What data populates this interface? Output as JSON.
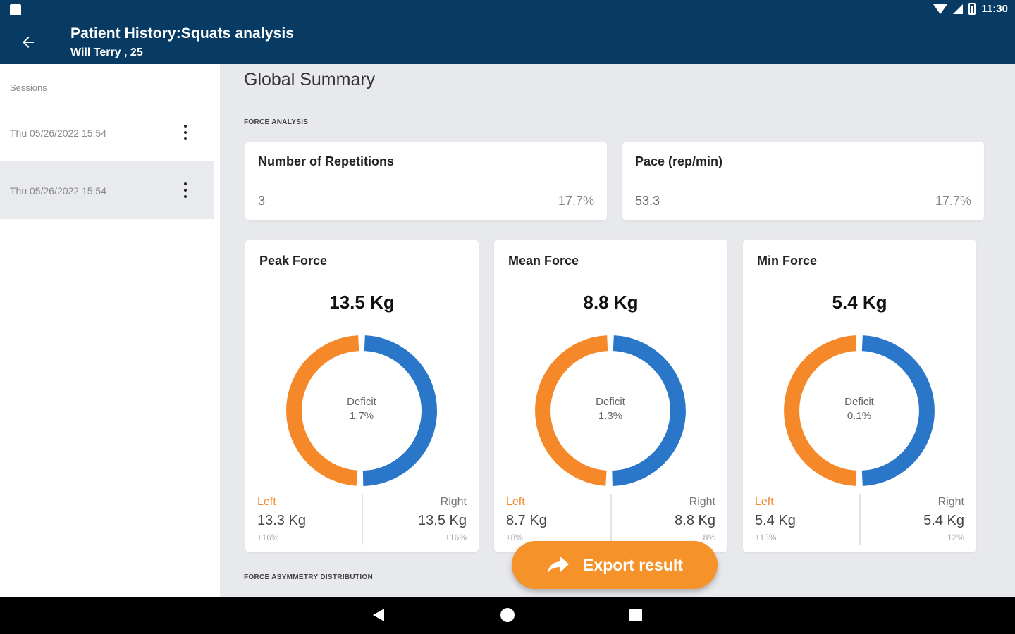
{
  "status_bar": {
    "time": "11:30",
    "icons": [
      "wifi-icon",
      "signal-icon",
      "battery-icon"
    ]
  },
  "app_bar": {
    "title": "Patient History:Squats analysis",
    "subtitle": "Will Terry , 25",
    "back_icon": "arrow-left-icon"
  },
  "sidebar": {
    "label": "Sessions",
    "sessions": [
      {
        "date": "Thu 05/26/2022 15:54",
        "selected": false
      },
      {
        "date": "Thu 05/26/2022 15:54",
        "selected": true
      }
    ]
  },
  "main": {
    "title": "Global Summary",
    "section_force": "FORCE ANALYSIS",
    "section_asymmetry": "FORCE ASYMMETRY DISTRIBUTION",
    "stats": [
      {
        "title": "Number of Repetitions",
        "value": "3",
        "pct": "17.7%"
      },
      {
        "title": "Pace (rep/min)",
        "value": "53.3",
        "pct": "17.7%"
      }
    ],
    "force_cards": [
      {
        "title": "Peak Force",
        "total": "13.5 Kg",
        "deficit_label": "Deficit",
        "deficit": "1.7%",
        "left_label": "Left",
        "left_value": "13.3 Kg",
        "left_pct": "±16%",
        "right_label": "Right",
        "right_value": "13.5 Kg",
        "right_pct": "±16%",
        "left_kg": 13.3,
        "right_kg": 13.5
      },
      {
        "title": "Mean Force",
        "total": "8.8 Kg",
        "deficit_label": "Deficit",
        "deficit": "1.3%",
        "left_label": "Left",
        "left_value": "8.7 Kg",
        "left_pct": "±8%",
        "right_label": "Right",
        "right_value": "8.8 Kg",
        "right_pct": "±8%",
        "left_kg": 8.7,
        "right_kg": 8.8
      },
      {
        "title": "Min Force",
        "total": "5.4 Kg",
        "deficit_label": "Deficit",
        "deficit": "0.1%",
        "left_label": "Left",
        "left_value": "5.4 Kg",
        "left_pct": "±13%",
        "right_label": "Right",
        "right_value": "5.4 Kg",
        "right_pct": "±12%",
        "left_kg": 5.4,
        "right_kg": 5.4
      }
    ],
    "export": {
      "label": "Export result",
      "icon": "share-arrow-icon"
    }
  },
  "colors": {
    "primary": "#073b63",
    "left": "#f5892a",
    "right": "#2a77c9",
    "accent": "#f5922a"
  },
  "nav_bar": {
    "icons": [
      "nav-back-icon",
      "nav-home-icon",
      "nav-recent-icon"
    ]
  }
}
